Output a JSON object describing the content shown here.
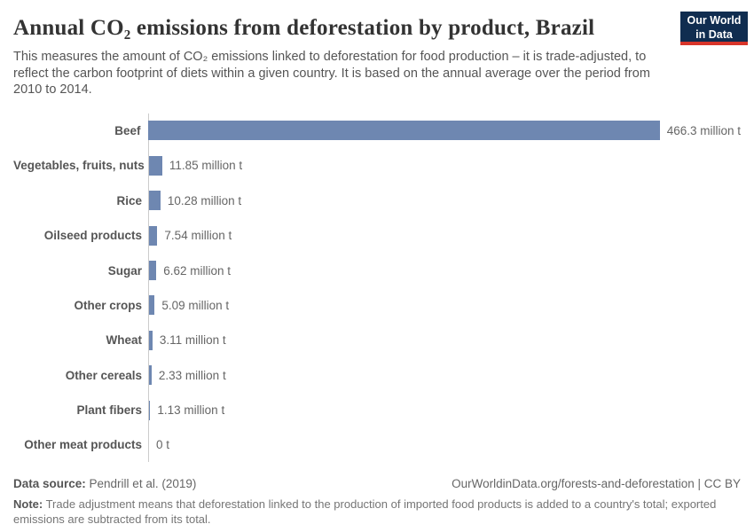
{
  "header": {
    "title": "Annual CO₂ emissions from deforestation by product, Brazil",
    "subtitle": "This measures the amount of CO₂ emissions linked to deforestation for food production – it is trade-adjusted, to reflect the carbon footprint of diets within a given country. It is based on the annual average over the period from 2010 to 2014.",
    "logo_line1": "Our World",
    "logo_line2": "in Data"
  },
  "chart_data": {
    "type": "bar",
    "orientation": "horizontal",
    "title": "Annual CO₂ emissions from deforestation by product, Brazil",
    "categories": [
      "Beef",
      "Vegetables, fruits, nuts",
      "Rice",
      "Oilseed products",
      "Sugar",
      "Other crops",
      "Wheat",
      "Other cereals",
      "Plant fibers",
      "Other meat products"
    ],
    "values": [
      466.3,
      11.85,
      10.28,
      7.54,
      6.62,
      5.09,
      3.11,
      2.33,
      1.13,
      0
    ],
    "value_labels": [
      "466.3 million t",
      "11.85 million t",
      "10.28 million t",
      "7.54 million t",
      "6.62 million t",
      "5.09 million t",
      "3.11 million t",
      "2.33 million t",
      "1.13 million t",
      "0 t"
    ],
    "unit": "million t",
    "xlim": [
      0,
      466.3
    ],
    "grid": false,
    "legend": "none",
    "bar_color": "#6e87b1",
    "axis_color": "#cccccc"
  },
  "footer": {
    "data_source_label": "Data source:",
    "data_source_value": " Pendrill et al. (2019)",
    "attribution": "OurWorldinData.org/forests-and-deforestation | CC BY",
    "note_label": "Note:",
    "note_text": " Trade adjustment means that deforestation linked to the production of imported food products is added to a country's total; exported emissions are subtracted from its total."
  },
  "colors": {
    "bar": "#6e87b1",
    "title": "#333333",
    "subtitle": "#555555",
    "logo_navy": "#102d50",
    "logo_red": "#d8352a"
  }
}
